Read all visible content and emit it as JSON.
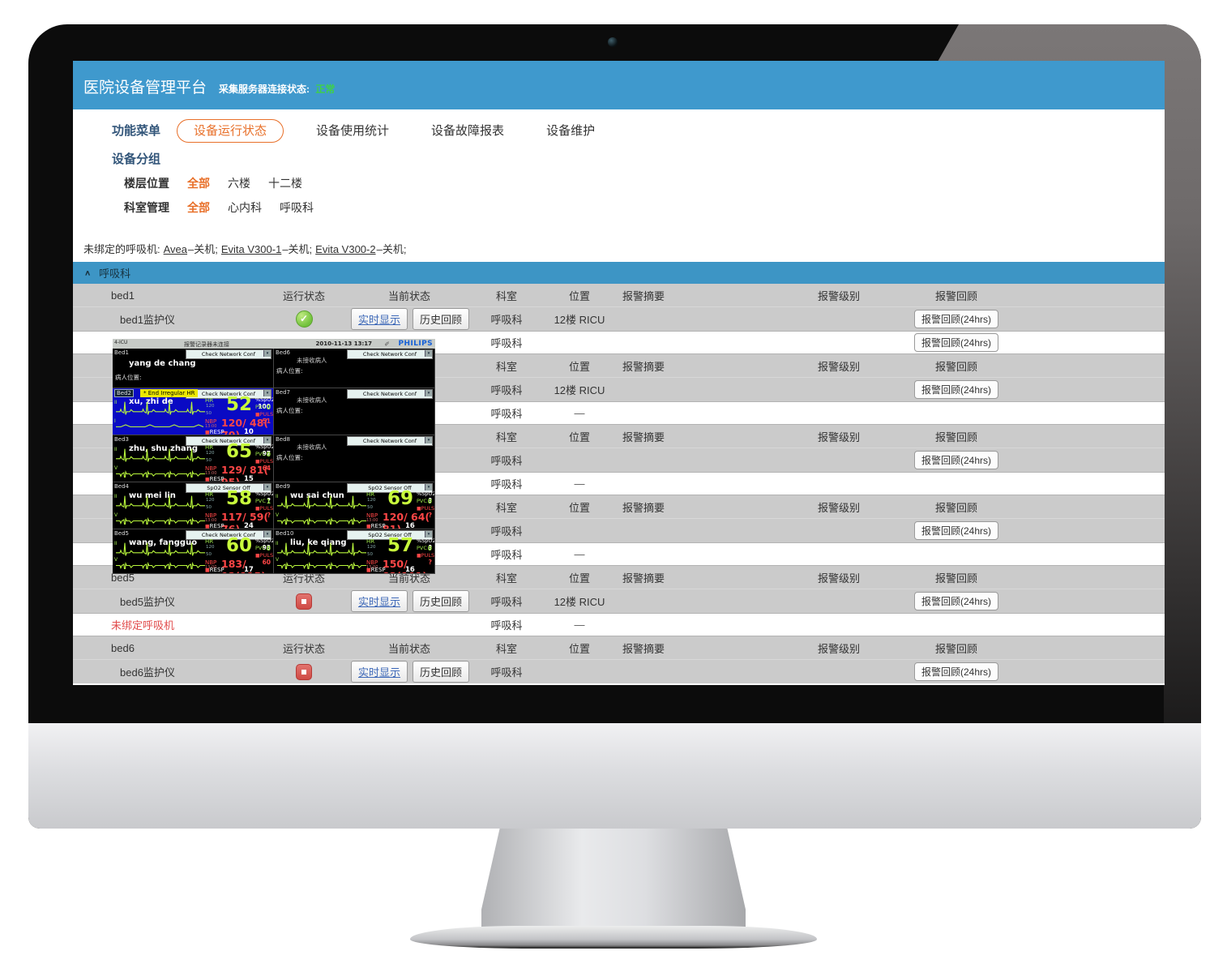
{
  "colors": {
    "accent_orange": "#e8702a",
    "topbar_blue": "#3f99cd",
    "section_blue": "#3d95c5",
    "ok_green": "#72c23c",
    "alert_red": "#e14c4c",
    "philips_blue": "#1560d8",
    "wave_green": "#b8f53c",
    "value_red": "#ff4646"
  },
  "app": {
    "topbar": {
      "title": "医院设备管理平台",
      "server_label": "采集服务器连接状态:",
      "server_status": "正常"
    },
    "nav": {
      "menu_label": "功能菜单",
      "items": [
        {
          "label": "设备运行状态",
          "active": true
        },
        {
          "label": "设备使用统计",
          "active": false
        },
        {
          "label": "设备故障报表",
          "active": false
        },
        {
          "label": "设备维护",
          "active": false
        }
      ]
    },
    "group_panel": {
      "title": "设备分组",
      "filters": [
        {
          "label": "楼层位置",
          "options": [
            "全部",
            "六楼",
            "十二楼"
          ],
          "active_index": 0
        },
        {
          "label": "科室管理",
          "options": [
            "全部",
            "心内科",
            "呼吸科"
          ],
          "active_index": 0
        }
      ]
    },
    "unbound": {
      "prefix": "未绑定的呼吸机:",
      "items": [
        {
          "name": "Avea",
          "state": "–关机;"
        },
        {
          "name": "Evita V300-1",
          "state": "–关机;"
        },
        {
          "name": "Evita V300-2",
          "state": "–关机;"
        }
      ]
    },
    "section": {
      "title": "呼吸科",
      "collapse_icon": "chevron-up"
    },
    "table": {
      "header_cols": [
        "运行状态",
        "当前状态",
        "科室",
        "位置",
        "报警摘要",
        "报警级别",
        "报警回顾"
      ],
      "review_button": "报警回顾(24hrs)",
      "buttons": {
        "realtime": "实时显示",
        "history": "历史回顾"
      },
      "dash": "—",
      "groups": [
        {
          "bed": "bed1",
          "rows": [
            {
              "kind": "monitor",
              "name": "bed1监护仪",
              "status": "running",
              "has_buttons": true,
              "dept": "呼吸科",
              "loc": "12楼 RICU",
              "review": true
            },
            {
              "kind": "ventilator",
              "name": "",
              "alert": false,
              "dept": "呼吸科",
              "loc": "",
              "review": true
            }
          ]
        },
        {
          "bed": "",
          "rows": [
            {
              "kind": "monitor",
              "name": "",
              "status": "none",
              "has_buttons": false,
              "dept": "呼吸科",
              "loc": "12楼 RICU",
              "review": true
            },
            {
              "kind": "ventilator",
              "name": "",
              "alert": false,
              "dept": "呼吸科",
              "loc": "—",
              "review": false
            }
          ]
        },
        {
          "bed": "",
          "rows": [
            {
              "kind": "monitor",
              "name": "",
              "status": "none",
              "has_buttons": false,
              "dept": "呼吸科",
              "loc": "",
              "review": true
            },
            {
              "kind": "ventilator",
              "name": "",
              "alert": false,
              "dept": "呼吸科",
              "loc": "—",
              "review": false
            }
          ]
        },
        {
          "bed": "",
          "rows": [
            {
              "kind": "monitor",
              "name": "",
              "status": "none",
              "has_buttons": false,
              "dept": "呼吸科",
              "loc": "",
              "review": true
            },
            {
              "kind": "ventilator",
              "name": "",
              "alert": false,
              "dept": "呼吸科",
              "loc": "—",
              "review": false
            }
          ]
        },
        {
          "bed": "bed5",
          "rows": [
            {
              "kind": "monitor",
              "name": "bed5监护仪",
              "status": "stopped",
              "has_buttons": true,
              "dept": "呼吸科",
              "loc": "12楼 RICU",
              "review": true
            },
            {
              "kind": "ventilator",
              "name": "未绑定呼吸机",
              "alert": true,
              "dept": "呼吸科",
              "loc": "—",
              "review": false
            }
          ]
        },
        {
          "bed": "bed6",
          "rows": [
            {
              "kind": "monitor",
              "name": "bed6监护仪",
              "status": "stopped",
              "has_buttons": true,
              "dept": "呼吸科",
              "loc": "",
              "review": true
            }
          ]
        }
      ]
    }
  },
  "monitor": {
    "titlebar": {
      "corner": "4-ICU",
      "alarm": "报警记录器未连接",
      "datetime": "2010-11-13 13:17",
      "brand": "PHILIPS"
    },
    "labels": {
      "hr": "HR",
      "spo2": "%SpO2",
      "pvc": "PVC",
      "pulse": "PULSE",
      "nbp": "NBP",
      "resp": "RESP",
      "patient_loc": "病人位置:",
      "no_patient": "未接收病人",
      "hr_hi": "120",
      "hr_lo": "50",
      "nbp_time": "13:00"
    },
    "beds": [
      {
        "id": "Bed1",
        "type": "named",
        "dropdown": "Check Network Conf",
        "patient": "yang de chang"
      },
      {
        "id": "Bed6",
        "type": "empty",
        "dropdown": "Check Network Conf"
      },
      {
        "id": "Bed2",
        "type": "vitals",
        "selected": true,
        "alarm": "* End Irregular HR",
        "dropdown": "Check Network Conf",
        "patient": "xu, zhi de",
        "leads": [
          "II",
          "I"
        ],
        "hr": "52",
        "spo2": "100",
        "pvc": "0",
        "pulse": "51",
        "nbp": "120/ 48( 70)",
        "resp": "10"
      },
      {
        "id": "Bed7",
        "type": "empty",
        "dropdown": "Check Network Conf"
      },
      {
        "id": "Bed3",
        "type": "vitals",
        "selected": false,
        "alarm": "",
        "dropdown": "Check Network Conf",
        "patient": "zhu, shu zhang",
        "leads": [
          "II",
          "V"
        ],
        "hr": "65",
        "spo2": "97",
        "pvc": "0",
        "pulse": "64",
        "nbp": "129/ 81( 95)",
        "resp": "15"
      },
      {
        "id": "Bed8",
        "type": "empty",
        "dropdown": "Check Network Conf"
      },
      {
        "id": "Bed4",
        "type": "vitals",
        "selected": false,
        "alarm": "",
        "dropdown": "SpO2   Sensor Off",
        "patient": "wu mei lin",
        "leads": [
          "II",
          "V"
        ],
        "hr": "58",
        "spo2": "?",
        "pvc": "1",
        "pulse": "?",
        "nbp": "117/ 59( 76)",
        "resp": "24"
      },
      {
        "id": "Bed9",
        "type": "vitals",
        "selected": false,
        "alarm": "",
        "dropdown": "SpO2   Sensor Off",
        "patient": "wu sai chun",
        "leads": [
          "II",
          "V"
        ],
        "hr": "69",
        "spo2": "?",
        "pvc": "0",
        "pulse": "?",
        "nbp": "120/ 64( 81)",
        "resp": "16"
      },
      {
        "id": "Bed5",
        "type": "vitals",
        "selected": false,
        "alarm": "",
        "dropdown": "Check Network Conf",
        "patient": "wang, fangguo",
        "leads": [
          "II",
          "V"
        ],
        "hr": "60",
        "spo2": "93",
        "pvc": "0",
        "pulse": "60",
        "nbp": "183/ 92(115)",
        "resp": "17"
      },
      {
        "id": "Bed10",
        "type": "vitals",
        "selected": false,
        "alarm": "",
        "dropdown": "SpO2   Sensor Off",
        "patient": "liu, ke qiang",
        "leads": [
          "II",
          "V"
        ],
        "hr": "57",
        "spo2": "?",
        "pvc": "0",
        "pulse": "?",
        "nbp": "150/ 82(101)",
        "resp": "16"
      }
    ]
  }
}
